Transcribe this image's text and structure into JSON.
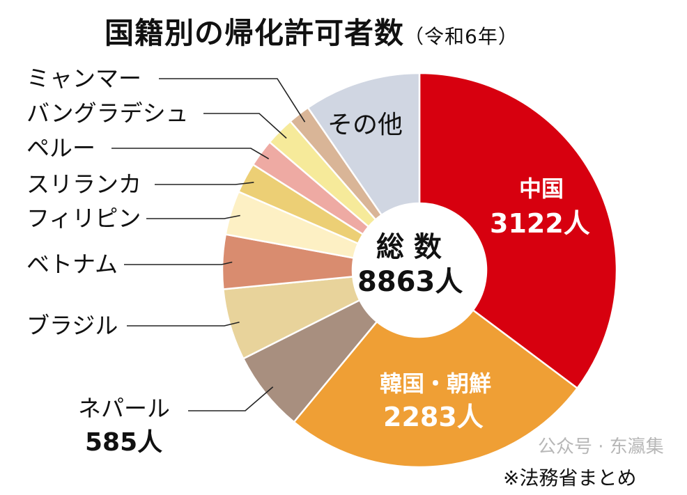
{
  "chart_data": {
    "type": "pie",
    "donut": true,
    "title": "国籍別の帰化許可者数",
    "subtitle": "（令和6年）",
    "total_label": "総 数",
    "total_value": "8863人",
    "unit": "人",
    "source": "※法務省まとめ",
    "watermark": "公众号 · 东瀛集",
    "slices": [
      {
        "label": "中国",
        "value": 3122,
        "value_label": "3122人",
        "color": "#d7000f"
      },
      {
        "label": "韓国・朝鮮",
        "value": 2283,
        "value_label": "2283人",
        "color": "#ef9f35"
      },
      {
        "label": "ネパール",
        "value": 585,
        "value_label": "585人",
        "color": "#a88f7f"
      },
      {
        "label": "ブラジル",
        "value": 520,
        "color": "#e8d39b"
      },
      {
        "label": "ベトナム",
        "value": 395,
        "color": "#d98c6f"
      },
      {
        "label": "フィリピン",
        "value": 320,
        "color": "#fdf0c4"
      },
      {
        "label": "スリランカ",
        "value": 220,
        "color": "#eccf75"
      },
      {
        "label": "ペルー",
        "value": 200,
        "color": "#eeaaa3"
      },
      {
        "label": "バングラデシュ",
        "value": 210,
        "color": "#f6ea9a"
      },
      {
        "label": "ミャンマー",
        "value": 160,
        "color": "#d9b597"
      },
      {
        "label": "その他",
        "value": 848,
        "color": "#d0d6e2"
      }
    ]
  }
}
